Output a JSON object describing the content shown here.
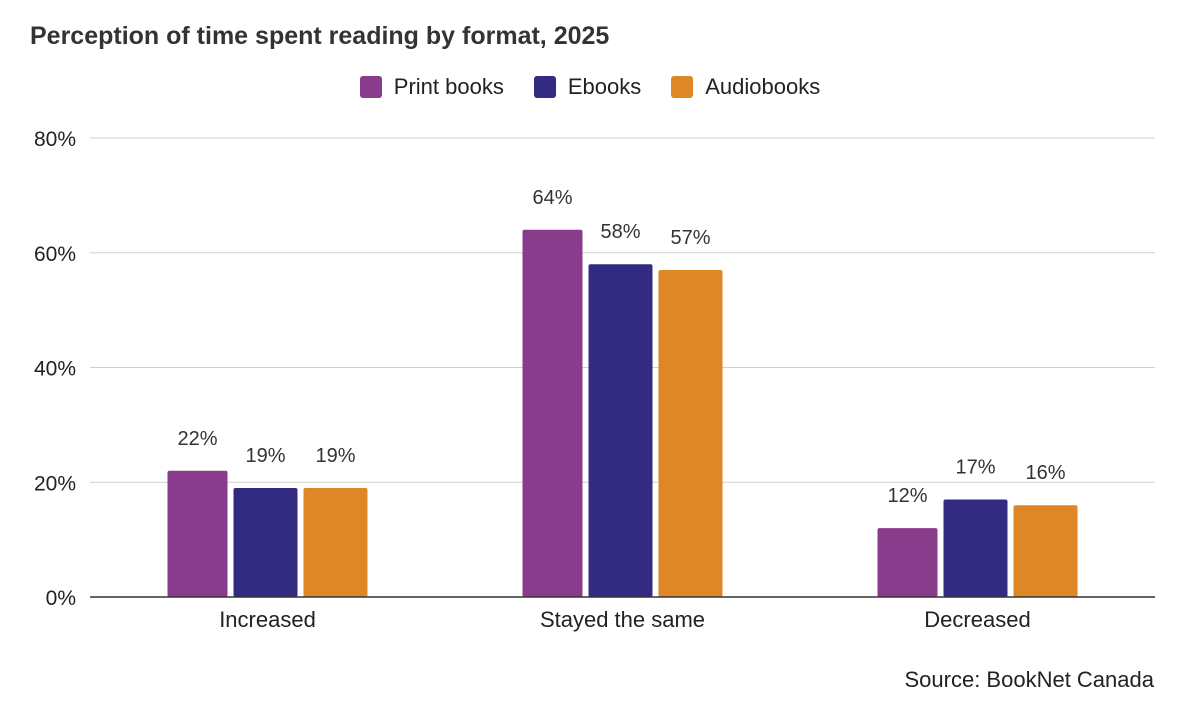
{
  "chart_data": {
    "type": "bar",
    "title": "Perception of time spent reading by format, 2025",
    "categories": [
      "Increased",
      "Stayed the same",
      "Decreased"
    ],
    "series": [
      {
        "name": "Print books",
        "color": "#883C8B",
        "values": [
          22,
          64,
          12
        ],
        "labels": [
          "22%",
          "64%",
          "12%"
        ]
      },
      {
        "name": "Ebooks",
        "color": "#332A82",
        "values": [
          19,
          58,
          17
        ],
        "labels": [
          "19%",
          "58%",
          "17%"
        ]
      },
      {
        "name": "Audiobooks",
        "color": "#DE8726",
        "values": [
          19,
          57,
          16
        ],
        "labels": [
          "19%",
          "57%",
          "16%"
        ]
      }
    ],
    "ylim": [
      0,
      80
    ],
    "yticks": [
      0,
      20,
      40,
      60,
      80
    ],
    "ytick_labels": [
      "0%",
      "20%",
      "40%",
      "60%",
      "80%"
    ],
    "xlabel": "",
    "ylabel": "",
    "grid": true,
    "legend_position": "top-center",
    "source": "Source: BookNet Canada"
  }
}
